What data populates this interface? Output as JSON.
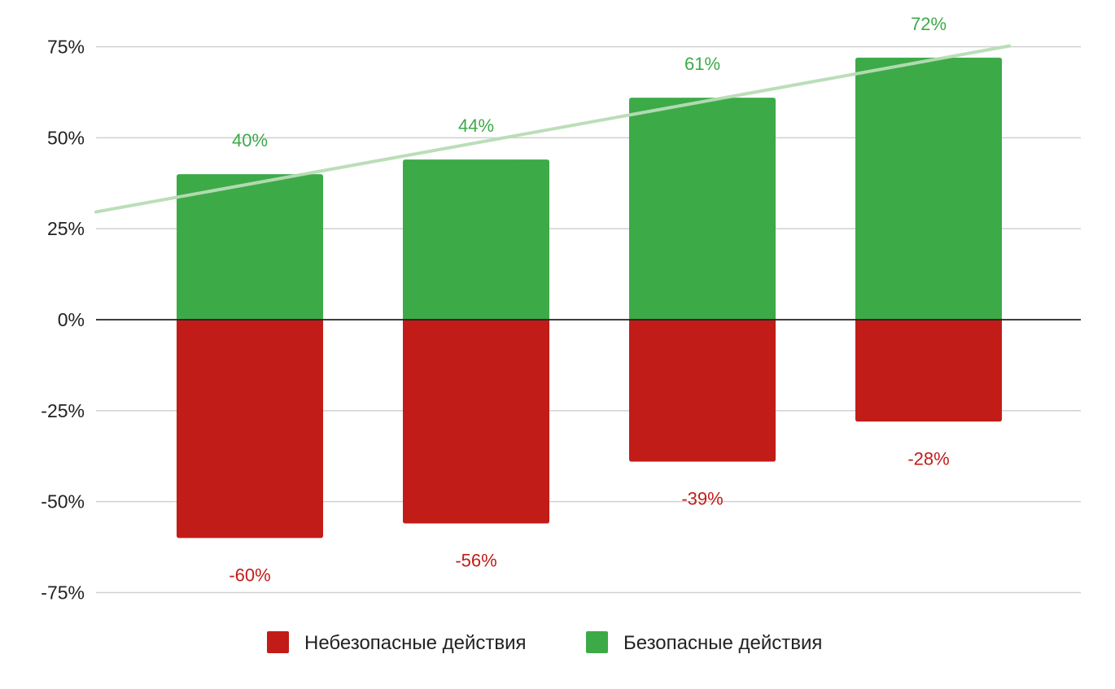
{
  "chart_data": {
    "type": "bar",
    "stacked": true,
    "categories": [
      "",
      "",
      "",
      ""
    ],
    "series": [
      {
        "name": "Небезопасные действия",
        "color": "#c21c18",
        "values": [
          -60,
          -56,
          -39,
          -28
        ],
        "labels": [
          "-60%",
          "-56%",
          "-39%",
          "-28%"
        ]
      },
      {
        "name": "Безопасные действия",
        "color": "#3daa48",
        "values": [
          40,
          44,
          61,
          72
        ],
        "labels": [
          "40%",
          "44%",
          "61%",
          "72%"
        ]
      }
    ],
    "trendline": {
      "series": "Безопасные действия",
      "color": "#b8ddb6"
    },
    "yticks": [
      "75%",
      "50%",
      "25%",
      "0%",
      "-25%",
      "-50%",
      "-75%"
    ],
    "ylim": [
      -75,
      75
    ],
    "title": "",
    "xlabel": "",
    "ylabel": "",
    "grid": true,
    "legend_position": "bottom"
  }
}
